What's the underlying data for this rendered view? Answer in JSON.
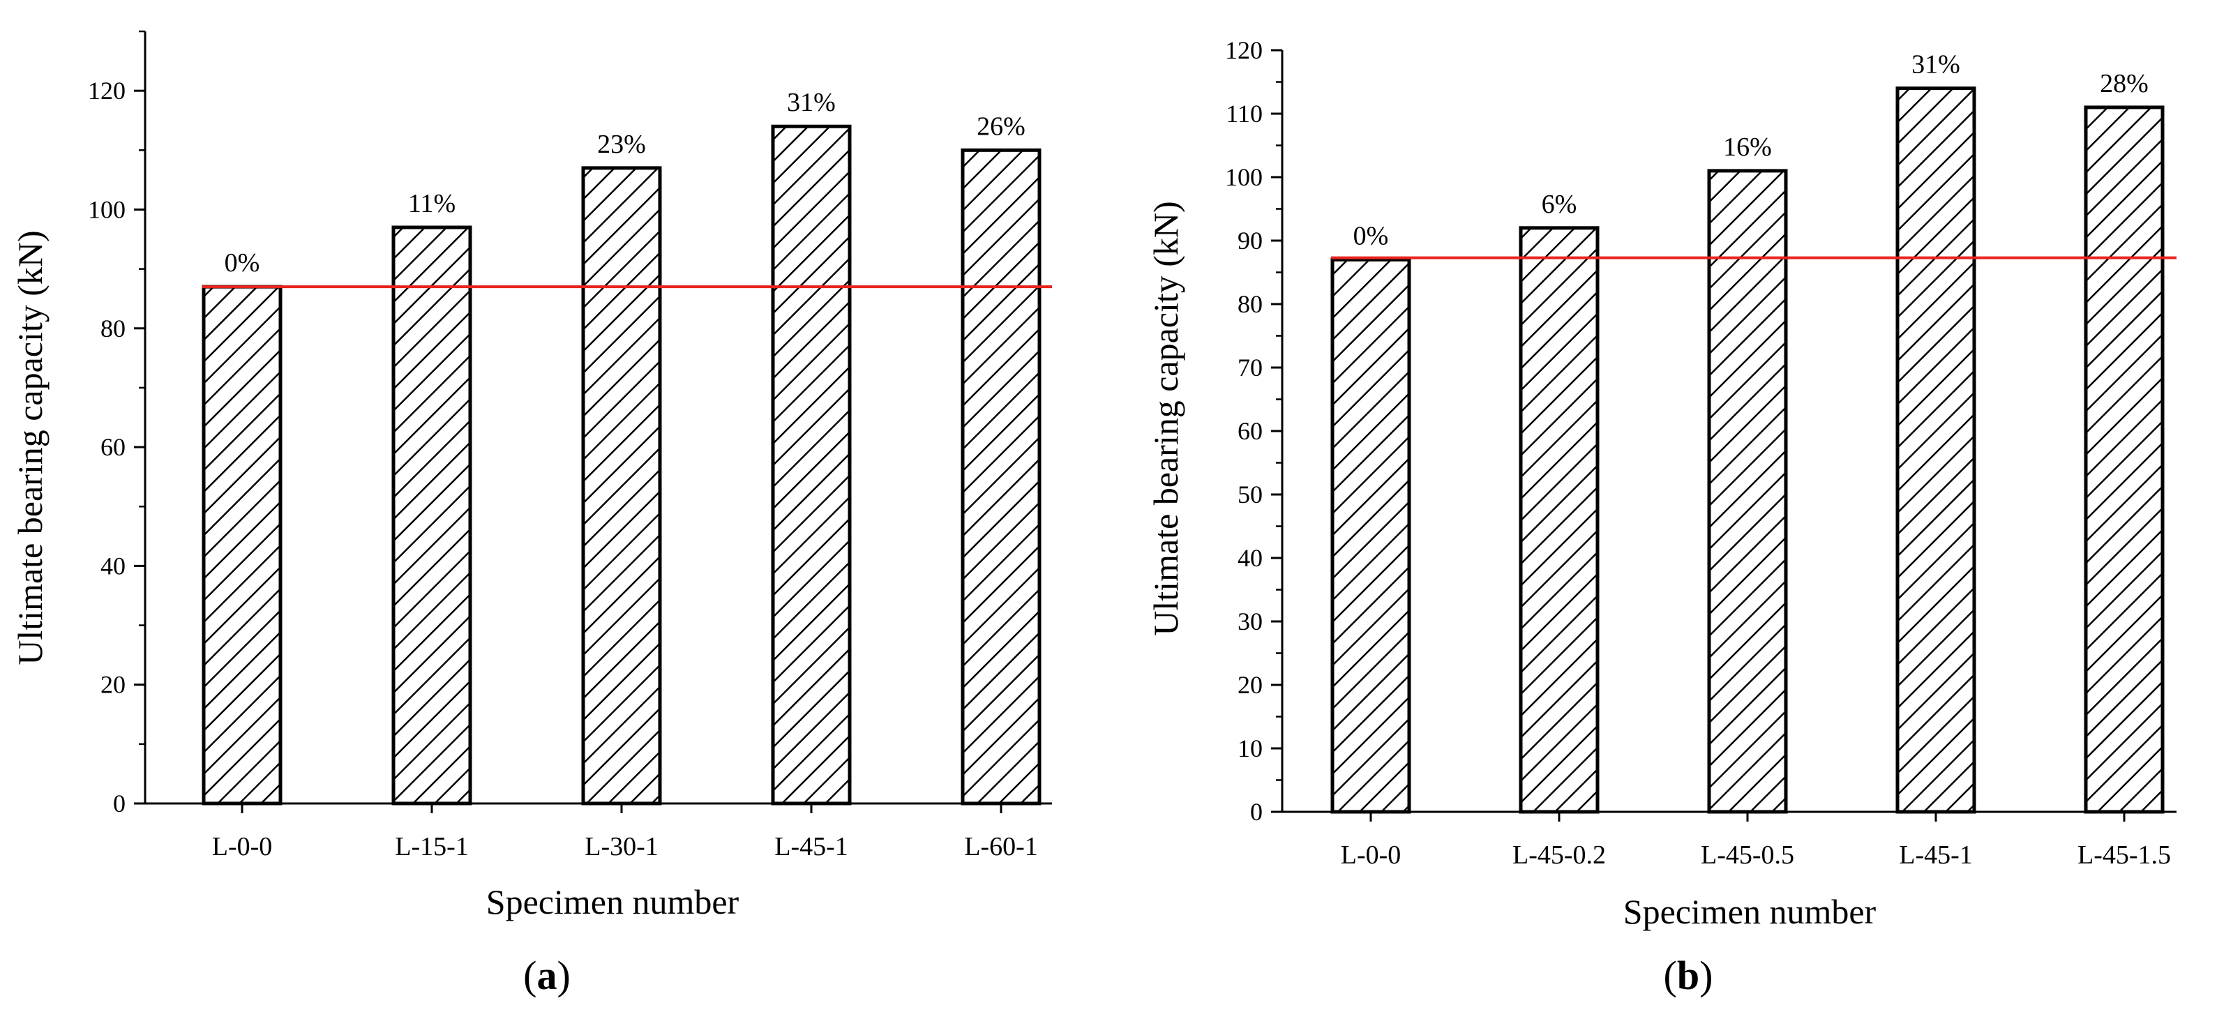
{
  "figure": {
    "panels": [
      "a",
      "b"
    ]
  },
  "chart_data": [
    {
      "type": "bar",
      "panel_label": "a",
      "categories": [
        "L-0-0",
        "L-15-1",
        "L-30-1",
        "L-45-1",
        "L-60-1"
      ],
      "values": [
        87,
        97,
        107,
        114,
        110
      ],
      "bar_labels": [
        "0%",
        "11%",
        "23%",
        "31%",
        "26%"
      ],
      "reference_line": {
        "value": 87,
        "color": "#e8231e"
      },
      "xlabel": "Specimen number",
      "ylabel": "Ultimate bearing capacity (kN)",
      "ylim": [
        0,
        130
      ],
      "yticks": [
        0,
        20,
        40,
        60,
        80,
        100,
        120
      ],
      "bar_pattern": "diagonal-hatch",
      "grid": false
    },
    {
      "type": "bar",
      "panel_label": "b",
      "categories": [
        "L-0-0",
        "L-45-0.2",
        "L-45-0.5",
        "L-45-1",
        "L-45-1.5"
      ],
      "values": [
        87,
        92,
        101,
        114,
        111
      ],
      "bar_labels": [
        "0%",
        "6%",
        "16%",
        "31%",
        "28%"
      ],
      "reference_line": {
        "value": 87.3,
        "color": "#e8231e"
      },
      "xlabel": "Specimen number",
      "ylabel": "Ultimate bearing capacity (kN)",
      "ylim": [
        0,
        120
      ],
      "yticks": [
        0,
        10,
        20,
        30,
        40,
        50,
        60,
        70,
        80,
        90,
        100,
        110,
        120
      ],
      "bar_pattern": "diagonal-hatch",
      "grid": false
    }
  ]
}
